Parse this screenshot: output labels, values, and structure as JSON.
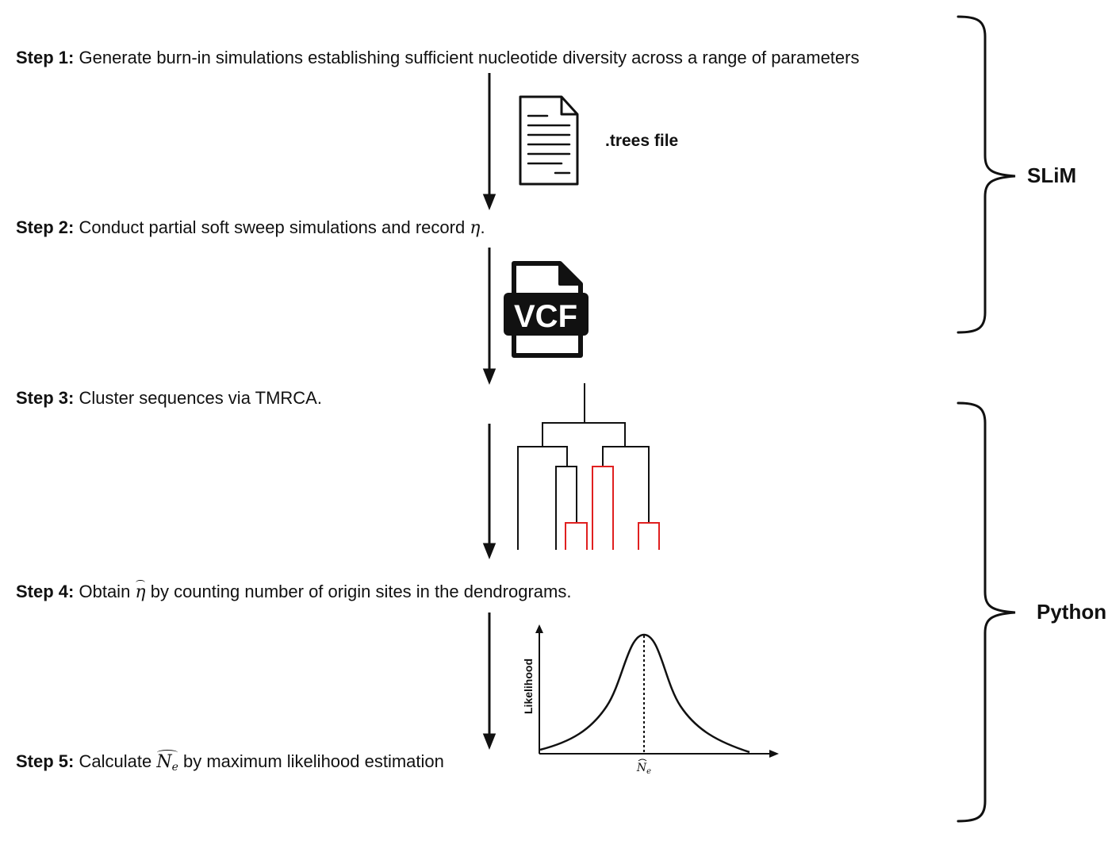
{
  "steps": [
    {
      "label": "Step 1:",
      "text": "Generate burn-in simulations establishing sufficient nucleotide diversity across a range of parameters"
    },
    {
      "label": "Step 2:",
      "text_before": "Conduct partial soft sweep simulations and record ",
      "math": "η",
      "text_after": "."
    },
    {
      "label": "Step 3:",
      "text": "Cluster sequences via TMRCA."
    },
    {
      "label": "Step 4:",
      "text_before": "Obtain ",
      "math": "η",
      "text_after": " by counting number of origin sites in the dendrograms."
    },
    {
      "label": "Step 5:",
      "text_before": "Calculate ",
      "math": "N",
      "math_sub": "e",
      "text_after": " by maximum likelihood estimation"
    }
  ],
  "trees_file_label": ".trees file",
  "vcf_label": "VCF",
  "groups": [
    {
      "label": "SLiM"
    },
    {
      "label": "Python"
    }
  ],
  "likelihood_plot": {
    "ylabel": "Likelihood",
    "xtick_math": "N",
    "xtick_sub": "e"
  },
  "colors": {
    "text": "#111111",
    "highlight_branch": "#e02020"
  },
  "icons": [
    "document-icon",
    "vcf-file-icon",
    "dendrogram-icon",
    "likelihood-curve-icon"
  ]
}
